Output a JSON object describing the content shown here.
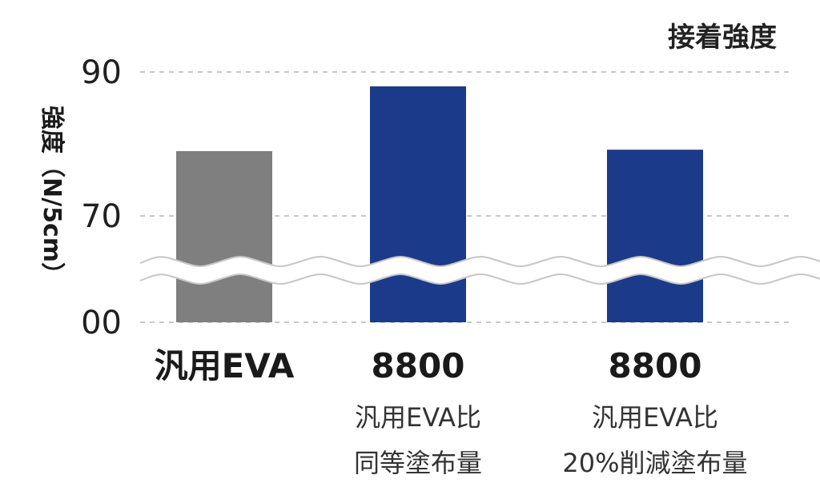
{
  "colors": {
    "reference_bar": "#7f7f7f",
    "product_bar": "#1b3a8a",
    "grid": "#c8c8c8",
    "break_band": "#ffffff",
    "break_line": "#c7c7c7"
  },
  "chart_data": {
    "type": "bar",
    "title": "接着強度",
    "ylabel": "強度（N/5cm）",
    "xlabel": "",
    "ylim": [
      0,
      90
    ],
    "axis_break": true,
    "yticks": [
      {
        "value": 90,
        "label": "90"
      },
      {
        "value": 70,
        "label": "70"
      },
      {
        "value": 0,
        "label": "00"
      }
    ],
    "grid": "horizontal dashed",
    "categories": [
      "汎用EVA",
      "8800",
      "8800"
    ],
    "category_notes": [
      [],
      [
        "汎用EVA比",
        "同等塗布量"
      ],
      [
        "汎用EVA比",
        "20%削減塗布量"
      ]
    ],
    "values": [
      79,
      88,
      79.2
    ],
    "bar_colors": [
      "#7f7f7f",
      "#1b3a8a",
      "#1b3a8a"
    ]
  }
}
